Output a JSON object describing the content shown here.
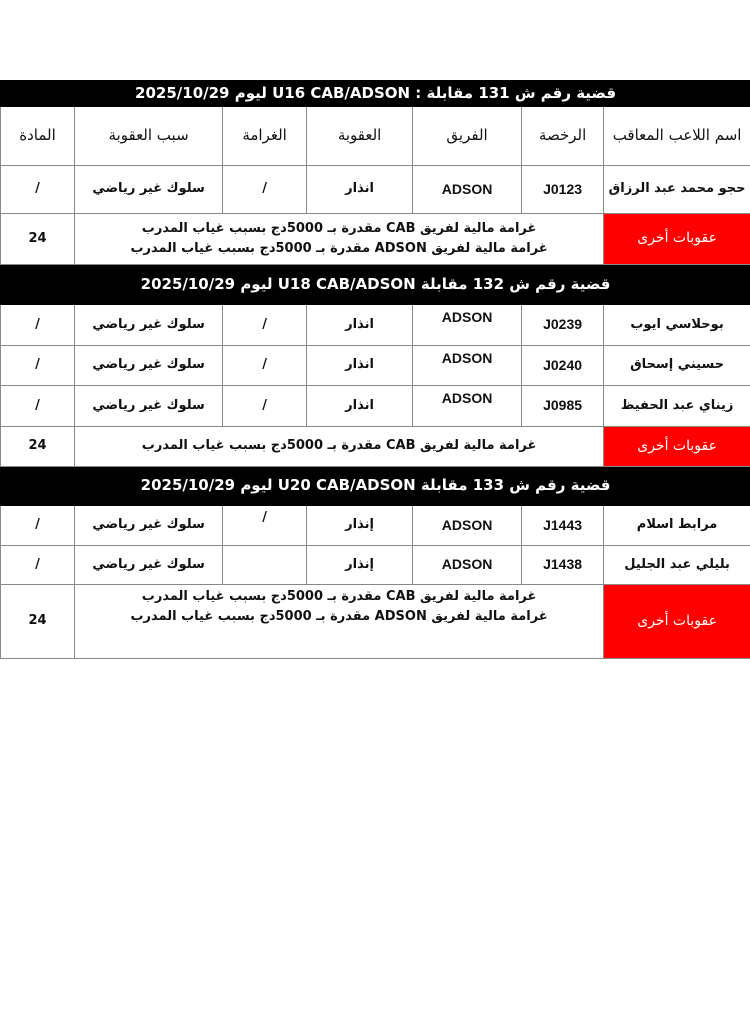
{
  "headers": [
    "اسم اللاعب المعاقب",
    "الرخصة",
    "الفريق",
    "العقوبة",
    "الغرامة",
    "سبب العقوبة",
    "المادة"
  ],
  "other_label": "عقوبات أخرى",
  "cases": [
    {
      "title": "قضية رقم ش 131 مقابلة : U16  CAB/ADSON ليوم 2025/10/29",
      "rows": [
        {
          "name": "حجو محمد عبد الرزاق",
          "license": "J0123",
          "team": "ADSON",
          "sanction": "انذار",
          "fine": "/",
          "reason": "سلوك غير رياضي",
          "article": "/"
        }
      ],
      "other": {
        "lines": [
          "غرامة مالية لفريق CAB  مقدرة بـ 5000دج بسبب غياب المدرب",
          "غرامة مالية لفريق ADSON  مقدرة بـ 5000دج بسبب غياب المدرب"
        ],
        "article": "24"
      }
    },
    {
      "title": "قضية رقم ش 132 مقابلة U18  CAB/ADSON ليوم 2025/10/29",
      "rows": [
        {
          "name": "بوحلاسي ايوب",
          "license": "J0239",
          "team": "ADSON",
          "sanction": "انذار",
          "fine": "/",
          "reason": "سلوك غير رياضي",
          "article": "/"
        },
        {
          "name": "حسيني إسحاق",
          "license": "J0240",
          "team": "ADSON",
          "sanction": "انذار",
          "fine": "/",
          "reason": "سلوك غير رياضي",
          "article": "/"
        },
        {
          "name": "زيناي عبد الحفيظ",
          "license": "J0985",
          "team": "ADSON",
          "sanction": "انذار",
          "fine": "/",
          "reason": "سلوك غير رياضي",
          "article": "/"
        }
      ],
      "other": {
        "lines": [
          "غرامة مالية لفريق CAB مقدرة بـ 5000دج بسبب غياب المدرب"
        ],
        "article": "24"
      }
    },
    {
      "title": "قضية رقم ش 133  مقابلة U20 CAB/ADSON ليوم 2025/10/29",
      "rows": [
        {
          "name": "مرابط اسلام",
          "license": "J1443",
          "team": "ADSON",
          "sanction": "إنذار",
          "fine": "/",
          "reason": "سلوك غير رياضي",
          "article": "/"
        },
        {
          "name": "بليلي عبد الجليل",
          "license": "J1438",
          "team": "ADSON",
          "sanction": "إنذار",
          "fine": "",
          "reason": "سلوك غير رياضي",
          "article": "/"
        }
      ],
      "other": {
        "lines": [
          "غرامة مالية لفريق CAB مقدرة بـ 5000دج بسبب غياب المدرب",
          "غرامة مالية لفريق ADSON مقدرة بـ 5000دج بسبب غياب المدرب"
        ],
        "article": "24"
      }
    }
  ],
  "colors": {
    "title_bg": "#000000",
    "other_bg": "#ff0000"
  }
}
